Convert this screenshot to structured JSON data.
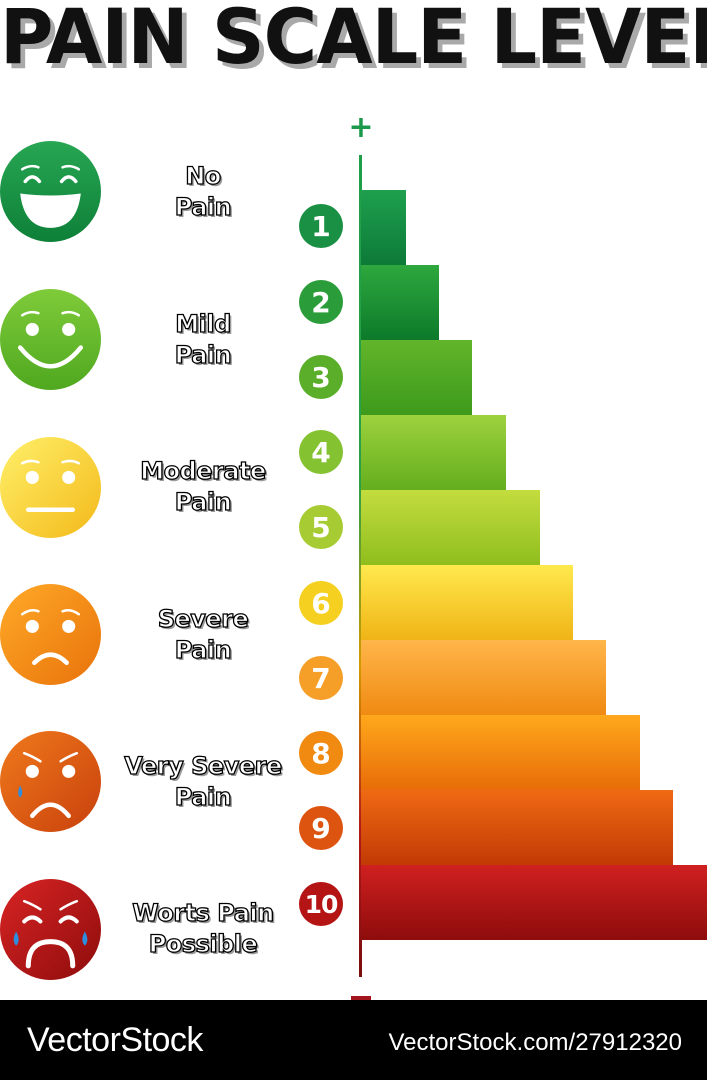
{
  "title": "PAIN SCALE LEVEL",
  "axis": {
    "top_symbol": "+",
    "bottom_symbol": "-"
  },
  "faces": [
    {
      "label_line1": "No",
      "label_line2": "Pain",
      "icon": "very-happy-face-icon",
      "color": "#1a9a48"
    },
    {
      "label_line1": "Mild",
      "label_line2": "Pain",
      "icon": "smiling-face-icon",
      "color": "#6cbd2c"
    },
    {
      "label_line1": "Moderate",
      "label_line2": "Pain",
      "icon": "neutral-face-icon",
      "color": "#f7d21f"
    },
    {
      "label_line1": "Severe",
      "label_line2": "Pain",
      "icon": "sad-face-icon",
      "color": "#f08e0a"
    },
    {
      "label_line1": "Very Severe",
      "label_line2": "Pain",
      "icon": "crying-face-icon",
      "color": "#e05a10"
    },
    {
      "label_line1": "Worts Pain",
      "label_line2": "Possible",
      "icon": "sobbing-face-icon",
      "color": "#c01a1a"
    }
  ],
  "levels": [
    {
      "number": "1",
      "bar_top": "#1ea04e",
      "bar_bottom": "#0d7a38",
      "badge": "#1a9044"
    },
    {
      "number": "2",
      "bar_top": "#2ea83e",
      "bar_bottom": "#0c7a2a",
      "badge": "#2a9d3a"
    },
    {
      "number": "3",
      "bar_top": "#62b52a",
      "bar_bottom": "#3d9a1c",
      "badge": "#5aae2a"
    },
    {
      "number": "4",
      "bar_top": "#9dd23d",
      "bar_bottom": "#64ae1e",
      "badge": "#84c232"
    },
    {
      "number": "5",
      "bar_top": "#c4dc3e",
      "bar_bottom": "#8fbe1e",
      "badge": "#a7cb33"
    },
    {
      "number": "6",
      "bar_top": "#ffe94d",
      "bar_bottom": "#f0b416",
      "badge": "#f6d020"
    },
    {
      "number": "7",
      "bar_top": "#ffb64a",
      "bar_bottom": "#f08a12",
      "badge": "#f59f28"
    },
    {
      "number": "8",
      "bar_top": "#ffa81c",
      "bar_bottom": "#e86c08",
      "badge": "#f18a10"
    },
    {
      "number": "9",
      "bar_top": "#ef6a14",
      "bar_bottom": "#c23a04",
      "badge": "#dd5410"
    },
    {
      "number": "10",
      "bar_top": "#d02020",
      "bar_bottom": "#8e0c0c",
      "badge": "#b51414"
    }
  ],
  "footer": {
    "brand": "VectorStock",
    "url": "VectorStock.com/27912320"
  }
}
